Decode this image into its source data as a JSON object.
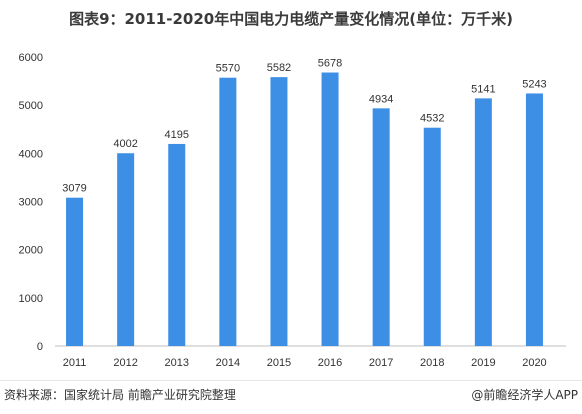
{
  "title": "图表9：2011-2020年中国电力电缆产量变化情况(单位：万千米)",
  "footer": {
    "source": "资料来源：国家统计局 前瞻产业研究院整理",
    "credit": "@前瞻经济学人APP"
  },
  "colors": {
    "bar": "#3d8fe6",
    "axis": "#bfbfbf",
    "text": "#333333"
  },
  "chart_data": {
    "type": "bar",
    "categories": [
      "2011",
      "2012",
      "2013",
      "2014",
      "2015",
      "2016",
      "2017",
      "2018",
      "2019",
      "2020"
    ],
    "values": [
      3079,
      4002,
      4195,
      5570,
      5582,
      5678,
      4934,
      4532,
      5141,
      5243
    ],
    "yticks": [
      0,
      1000,
      2000,
      3000,
      4000,
      5000,
      6000
    ],
    "ylim": [
      0,
      6000
    ],
    "title": "图表9：2011-2020年中国电力电缆产量变化情况(单位：万千米)",
    "grid": false,
    "legend": "none"
  }
}
